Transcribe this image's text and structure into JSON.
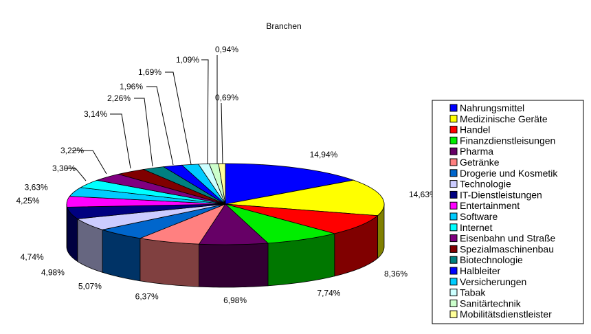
{
  "chart_data": {
    "type": "pie",
    "style": "3d-exploded-ring",
    "title": "Branchen",
    "legend_position": "right",
    "slices": [
      {
        "label": "Nahrungsmittel",
        "value": 14.94,
        "display": "14,94%",
        "color": "#0000ff"
      },
      {
        "label": "Medizinische Geräte",
        "value": 14.63,
        "display": "14,63%",
        "color": "#ffff00"
      },
      {
        "label": "Handel",
        "value": 8.36,
        "display": "8,36%",
        "color": "#ff0000"
      },
      {
        "label": "Finanzdienstleisungen",
        "value": 7.74,
        "display": "7,74%",
        "color": "#00ee00"
      },
      {
        "label": "Pharma",
        "value": 6.98,
        "display": "6,98%",
        "color": "#660066"
      },
      {
        "label": "Getränke",
        "value": 6.37,
        "display": "6,37%",
        "color": "#ff8080"
      },
      {
        "label": "Drogerie und Kosmetik",
        "value": 5.07,
        "display": "5,07%",
        "color": "#0066cc"
      },
      {
        "label": "Technologie",
        "value": 4.98,
        "display": "4,98%",
        "color": "#ccccff"
      },
      {
        "label": "IT-Dienstleistungen",
        "value": 4.74,
        "display": "4,74%",
        "color": "#000080"
      },
      {
        "label": "Entertainment",
        "value": 4.25,
        "display": "4,25%",
        "color": "#ff00ff"
      },
      {
        "label": "Software",
        "value": 3.63,
        "display": "3,63%",
        "color": "#00ccff"
      },
      {
        "label": "Internet",
        "value": 3.3,
        "display": "3,30%",
        "color": "#00ffff"
      },
      {
        "label": "Eisenbahn und Straße",
        "value": 3.22,
        "display": "3,22%",
        "color": "#800080"
      },
      {
        "label": "Spezialmaschinenbau",
        "value": 3.14,
        "display": "3,14%",
        "color": "#800000"
      },
      {
        "label": "Biotechnologie",
        "value": 2.26,
        "display": "2,26%",
        "color": "#008080"
      },
      {
        "label": "Halbleiter",
        "value": 1.96,
        "display": "1,96%",
        "color": "#0000ff"
      },
      {
        "label": "Versicherungen",
        "value": 1.69,
        "display": "1,69%",
        "color": "#00ccff"
      },
      {
        "label": "Tabak",
        "value": 1.09,
        "display": "1,09%",
        "color": "#ccffff"
      },
      {
        "label": "Sanitärtechnik",
        "value": 0.94,
        "display": "0,94%",
        "color": "#ccffcc"
      },
      {
        "label": "Mobilitätsdienstleister",
        "value": 0.69,
        "display": "0,69%",
        "color": "#ffff99"
      }
    ]
  }
}
